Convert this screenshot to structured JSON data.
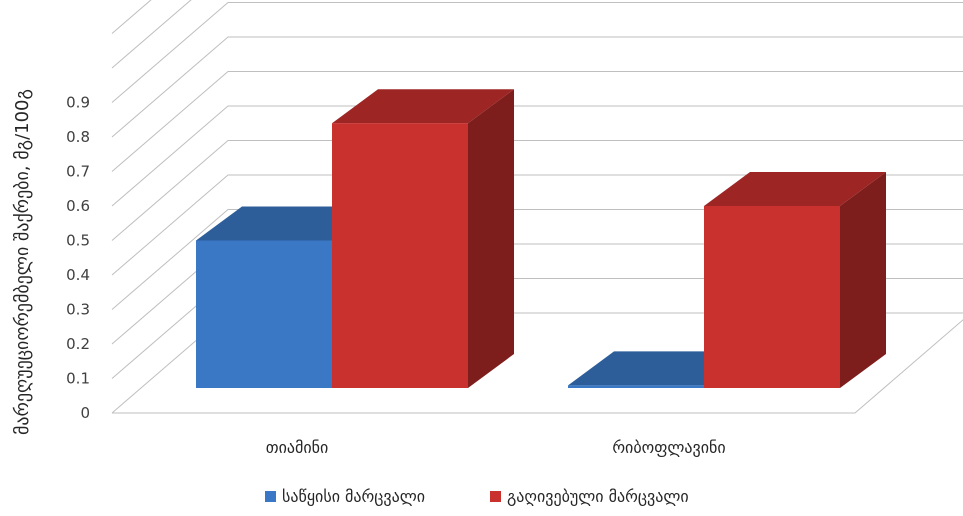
{
  "chart_data": {
    "type": "bar",
    "style": "3d-clustered-column",
    "categories": [
      "თიამინი",
      "რიბოფლავინი"
    ],
    "series": [
      {
        "name": "საწყისი მარცვალი",
        "values": [
          0.5,
          0.08
        ],
        "color": "#3a78c6"
      },
      {
        "name": "გაღივებული მარცვალი",
        "values": [
          0.84,
          0.6
        ],
        "color": "#c9312f"
      }
    ],
    "ylabel": "მარეღუეციორემბელი შაქრები, მგ/100გ",
    "yticks": [
      "0",
      "0.1",
      "0.2",
      "0.3",
      "0.4",
      "0.5",
      "0.6",
      "0.7",
      "0.8",
      "0.9"
    ],
    "ylim": [
      0,
      1.1
    ],
    "grid": true,
    "legend_position": "bottom"
  }
}
